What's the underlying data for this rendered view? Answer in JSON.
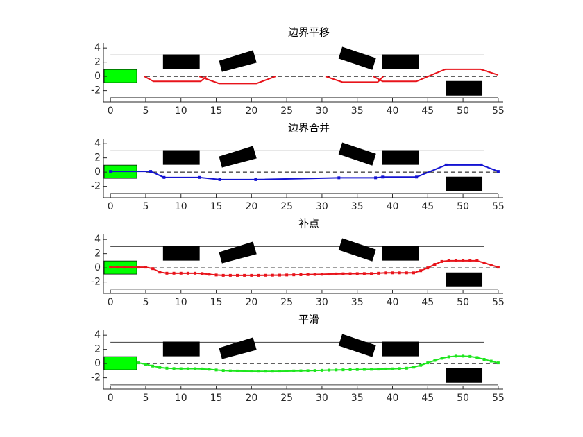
{
  "scene": {
    "lines": [
      {
        "x": [
          0,
          53
        ],
        "y": [
          3,
          3
        ]
      },
      {
        "x": [
          0,
          55
        ],
        "y": [
          -3,
          -3
        ]
      }
    ],
    "centerline": {
      "x": [
        5,
        55
      ],
      "y": [
        0,
        0
      ]
    },
    "obstacles": [
      {
        "x": [
          7.5,
          12.6,
          12.6,
          7.5
        ],
        "y": [
          3.04,
          3.04,
          1.08,
          1.08
        ]
      },
      {
        "x": [
          15.45,
          20.18,
          20.67,
          15.85
        ],
        "y": [
          2.16,
          3.63,
          1.96,
          0.69
        ]
      },
      {
        "x": [
          32.9,
          37.6,
          37.1,
          32.4
        ],
        "y": [
          4.1,
          2.55,
          0.98,
          2.55
        ]
      },
      {
        "x": [
          38.6,
          43.7,
          43.7,
          38.6
        ],
        "y": [
          3.04,
          3.04,
          1.08,
          1.08
        ]
      },
      {
        "x": [
          47.6,
          52.7,
          52.7,
          47.6
        ],
        "y": [
          -0.69,
          -0.69,
          -2.65,
          -2.65
        ]
      }
    ],
    "vehicle": {
      "x": [
        -0.9,
        3.74,
        3.74,
        -0.9
      ],
      "y": [
        0.98,
        0.98,
        -0.88,
        -0.88
      ],
      "color": "#00ff00"
    }
  },
  "chart_data": [
    {
      "type": "line",
      "title": "边界平移",
      "xlim": [
        -1,
        55.7
      ],
      "ylim": [
        -3.6,
        4.7
      ],
      "xticks": [
        0,
        5,
        10,
        15,
        20,
        25,
        30,
        35,
        40,
        45,
        50,
        55
      ],
      "yticks": [
        -2,
        0,
        2,
        4
      ],
      "series": [
        {
          "color": "#e8141b",
          "marker": false,
          "x": [
            4.8,
            6.1,
            12.8,
            13.6,
            null,
            12.6,
            15.4,
            20.7,
            23.4,
            null,
            30.5,
            32.9,
            37.9,
            38.7,
            null,
            37.3,
            38.6,
            43.4,
            46,
            47.5,
            52.5,
            55
          ],
          "values": [
            0,
            -0.7,
            -0.7,
            0,
            null,
            0,
            -1,
            -1,
            0,
            null,
            0,
            -0.8,
            -0.8,
            0,
            null,
            0,
            -0.7,
            -0.7,
            0.4,
            1,
            1,
            0.2
          ]
        }
      ]
    },
    {
      "type": "line",
      "title": "边界合并",
      "xlim": [
        -1,
        55.7
      ],
      "ylim": [
        -3.6,
        4.7
      ],
      "xticks": [
        0,
        5,
        10,
        15,
        20,
        25,
        30,
        35,
        40,
        45,
        50,
        55
      ],
      "yticks": [
        -2,
        0,
        2,
        4
      ],
      "series": [
        {
          "color": "#1414d2",
          "marker": true,
          "x": [
            0,
            5.7,
            7.6,
            12.6,
            15.5,
            20.6,
            32.4,
            37.6,
            38.6,
            43.4,
            47.6,
            52.6,
            55
          ],
          "values": [
            0.1,
            0.1,
            -0.75,
            -0.75,
            -1.05,
            -1.05,
            -0.8,
            -0.8,
            -0.7,
            -0.7,
            1,
            1,
            0.1
          ]
        }
      ]
    },
    {
      "type": "line",
      "title": "补点",
      "xlim": [
        -1,
        55.7
      ],
      "ylim": [
        -3.6,
        4.7
      ],
      "xticks": [
        0,
        5,
        10,
        15,
        20,
        25,
        30,
        35,
        40,
        45,
        50,
        55
      ],
      "yticks": [
        -2,
        0,
        2,
        4
      ],
      "series": [
        {
          "color": "#e8141b",
          "marker": true,
          "x": [
            0,
            1,
            2,
            3,
            4,
            5,
            6,
            7,
            8,
            9,
            10,
            11,
            12,
            13,
            14,
            15,
            16,
            17,
            18,
            19,
            20,
            21,
            22,
            23,
            24,
            25,
            26,
            27,
            28,
            29,
            30,
            31,
            32,
            33,
            34,
            35,
            36,
            37,
            38,
            39,
            40,
            41,
            42,
            43,
            44,
            45,
            46,
            47,
            48,
            49,
            50,
            51,
            52,
            53,
            54,
            55
          ],
          "values": [
            0.1,
            0.1,
            0.1,
            0.1,
            0.1,
            0.1,
            -0.1,
            -0.6,
            -0.75,
            -0.75,
            -0.75,
            -0.75,
            -0.75,
            -0.8,
            -0.9,
            -1,
            -1.05,
            -1.05,
            -1.05,
            -1.05,
            -1.05,
            -1.05,
            -1.04,
            -1.03,
            -1.02,
            -1,
            -0.98,
            -0.96,
            -0.94,
            -0.92,
            -0.9,
            -0.87,
            -0.85,
            -0.83,
            -0.82,
            -0.81,
            -0.8,
            -0.8,
            -0.75,
            -0.7,
            -0.7,
            -0.7,
            -0.7,
            -0.7,
            -0.4,
            0,
            0.5,
            0.9,
            1,
            1,
            1,
            1,
            1,
            0.7,
            0.4,
            0.1
          ]
        }
      ]
    },
    {
      "type": "line",
      "title": "平滑",
      "xlim": [
        -1,
        55.7
      ],
      "ylim": [
        -3.6,
        4.7
      ],
      "xticks": [
        0,
        5,
        10,
        15,
        20,
        25,
        30,
        35,
        40,
        45,
        50,
        55
      ],
      "yticks": [
        -2,
        0,
        2,
        4
      ],
      "series": [
        {
          "color": "#1ee61e",
          "marker": true,
          "x": [
            4,
            5,
            6,
            7,
            8,
            9,
            10,
            11,
            12,
            13,
            14,
            15,
            16,
            17,
            18,
            19,
            20,
            21,
            22,
            23,
            24,
            25,
            26,
            27,
            28,
            29,
            30,
            31,
            32,
            33,
            34,
            35,
            36,
            37,
            38,
            39,
            40,
            41,
            42,
            43,
            44,
            45,
            46,
            47,
            48,
            49,
            50,
            51,
            52,
            53,
            54,
            55
          ],
          "values": [
            0.1,
            -0.1,
            -0.35,
            -0.55,
            -0.65,
            -0.7,
            -0.72,
            -0.72,
            -0.72,
            -0.75,
            -0.8,
            -0.9,
            -0.98,
            -1.03,
            -1.05,
            -1.06,
            -1.07,
            -1.08,
            -1.08,
            -1.08,
            -1.07,
            -1.06,
            -1.04,
            -1.02,
            -1,
            -0.98,
            -0.95,
            -0.92,
            -0.9,
            -0.88,
            -0.86,
            -0.84,
            -0.82,
            -0.8,
            -0.78,
            -0.76,
            -0.74,
            -0.7,
            -0.65,
            -0.5,
            -0.25,
            0.1,
            0.45,
            0.75,
            0.95,
            1.05,
            1.05,
            1,
            0.85,
            0.6,
            0.35,
            0.1
          ]
        }
      ]
    }
  ]
}
